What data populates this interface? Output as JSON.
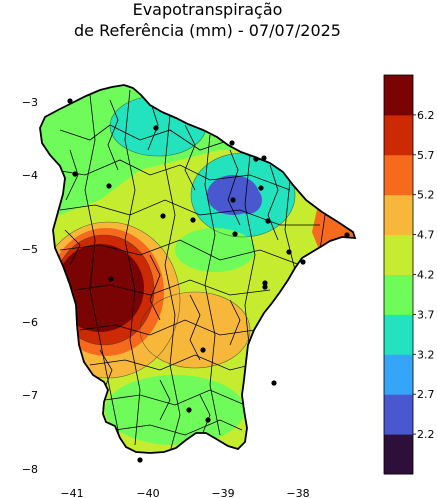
{
  "title": {
    "line1": "Evapotranspiração",
    "line2": "de Referência (mm) - 07/07/2025"
  },
  "map": {
    "region": "Ceará",
    "y_ticks": [
      "−3",
      "−4",
      "−5",
      "−6",
      "−7",
      "−8"
    ],
    "x_ticks": [
      "−41",
      "−40",
      "−39",
      "−38"
    ]
  },
  "colorbar": {
    "levels": [
      "2.2",
      "2.7",
      "3.2",
      "3.7",
      "4.2",
      "4.7",
      "5.2",
      "5.7",
      "6.2"
    ],
    "colors": [
      "#2e0f3a",
      "#4a58d0",
      "#37a5f7",
      "#23e2be",
      "#6ffb5a",
      "#c6ec2f",
      "#f7b73a",
      "#f66a1d",
      "#cc2a04",
      "#7a0403"
    ]
  }
}
